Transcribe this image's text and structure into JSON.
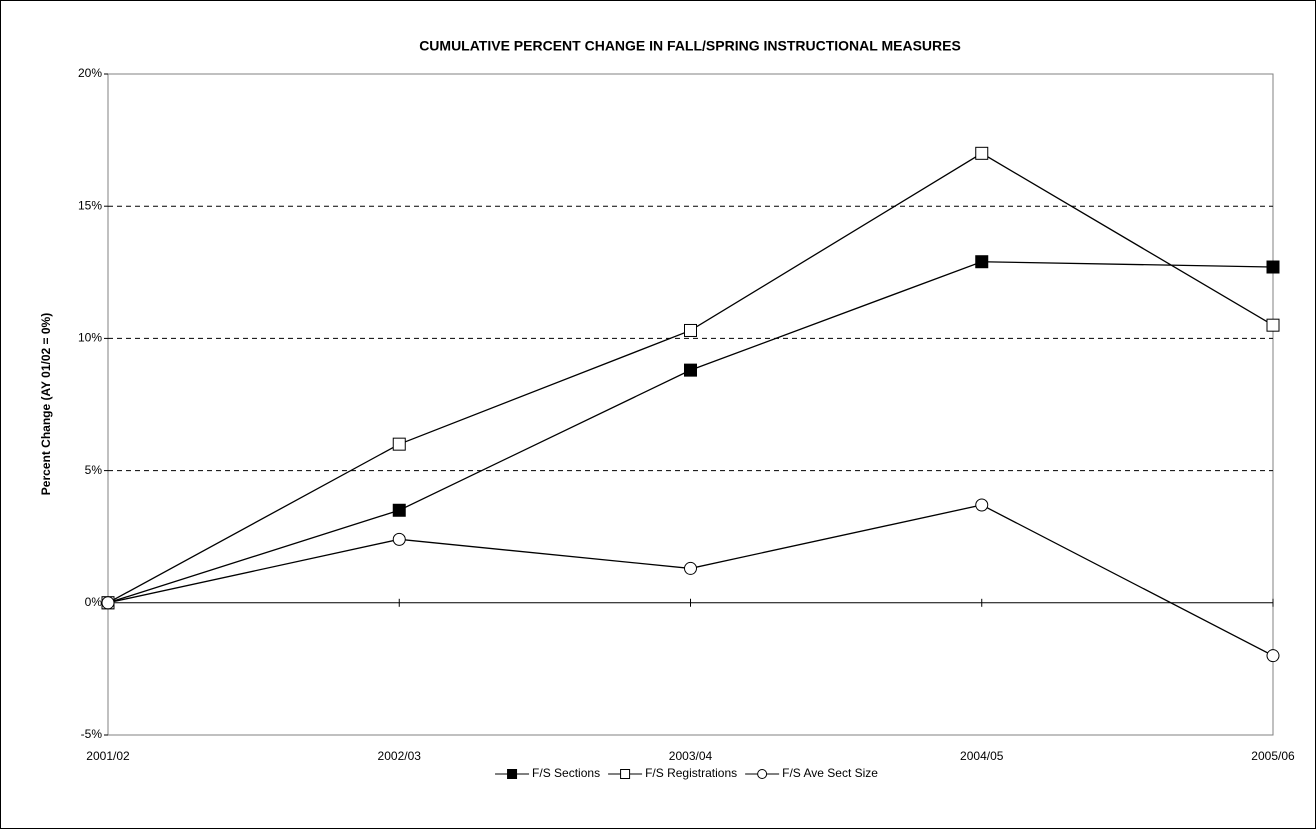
{
  "chart_data": {
    "type": "line",
    "title": "CUMULATIVE PERCENT CHANGE IN FALL/SPRING INSTRUCTIONAL MEASURES",
    "y_label": "Percent Change (AY 01/02 = 0%)",
    "categories": [
      "2001/02",
      "2002/03",
      "2003/04",
      "2004/05",
      "2005/06"
    ],
    "series": [
      {
        "name": "F/S Sections",
        "color": "#000000",
        "marker": "square-filled",
        "values": [
          0,
          3.5,
          8.8,
          12.9,
          12.7
        ]
      },
      {
        "name": "F/S Registrations",
        "color": "#000000",
        "marker": "square-open",
        "values": [
          0,
          6.0,
          10.3,
          17.0,
          10.5
        ]
      },
      {
        "name": "F/S Ave Sect Size",
        "color": "#000000",
        "marker": "circle-open",
        "values": [
          0,
          2.4,
          1.3,
          3.7,
          -2.0
        ]
      }
    ],
    "ylim": [
      -5,
      20
    ],
    "yticks": [
      {
        "value": -5,
        "label": "-5%"
      },
      {
        "value": 0,
        "label": "0%"
      },
      {
        "value": 5,
        "label": "5%"
      },
      {
        "value": 10,
        "label": "10%"
      },
      {
        "value": 15,
        "label": "15%"
      },
      {
        "value": 20,
        "label": "20%"
      }
    ],
    "grid": true,
    "grid_style": "dashed",
    "legend": "bottom"
  }
}
